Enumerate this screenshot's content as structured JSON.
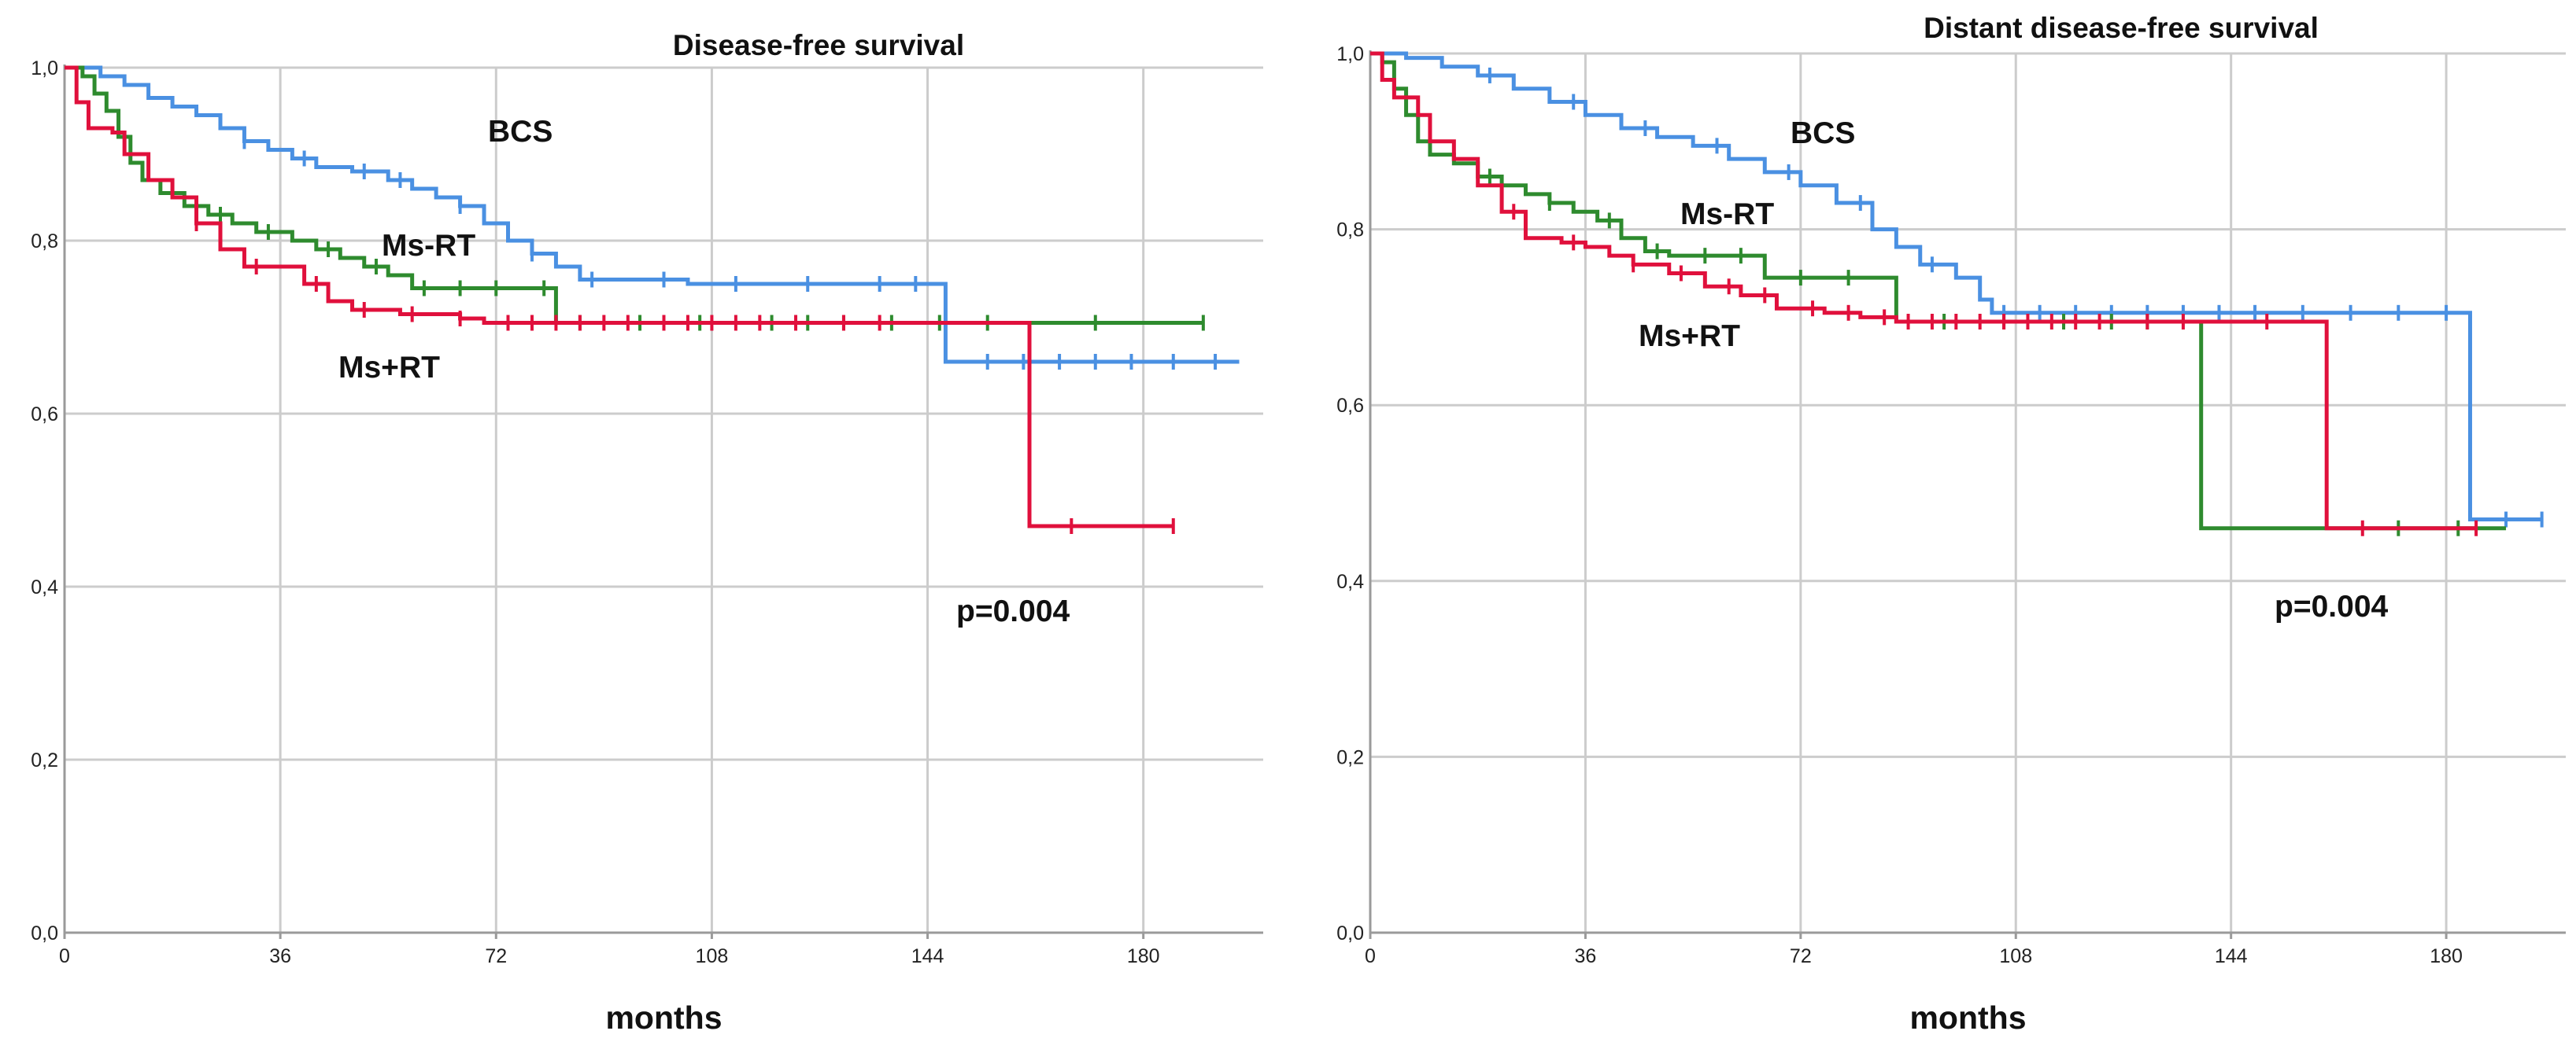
{
  "colors": {
    "BCS": "#4a90e2",
    "Ms-RT": "#2e8b2e",
    "Ms+RT": "#e0103c",
    "grid": "#cccccc",
    "axis": "#9a9a9a"
  },
  "chart_data": [
    {
      "type": "line",
      "title": "Disease-free survival",
      "xlabel": "months",
      "ylabel": "",
      "xlim": [
        0,
        200
      ],
      "ylim": [
        0,
        1.0
      ],
      "xticks": [
        "0",
        "36",
        "72",
        "108",
        "144",
        "180"
      ],
      "yticks": [
        "0,0",
        "0,2",
        "0,4",
        "0,6",
        "0,8",
        "1,0"
      ],
      "grid": true,
      "annotations": [
        "p=0.004"
      ],
      "series": [
        {
          "name": "BCS",
          "points": [
            [
              0,
              1.0
            ],
            [
              6,
              0.99
            ],
            [
              10,
              0.98
            ],
            [
              14,
              0.965
            ],
            [
              18,
              0.955
            ],
            [
              22,
              0.945
            ],
            [
              26,
              0.93
            ],
            [
              30,
              0.915
            ],
            [
              34,
              0.905
            ],
            [
              38,
              0.895
            ],
            [
              42,
              0.885
            ],
            [
              48,
              0.88
            ],
            [
              54,
              0.87
            ],
            [
              58,
              0.86
            ],
            [
              62,
              0.85
            ],
            [
              66,
              0.84
            ],
            [
              70,
              0.82
            ],
            [
              74,
              0.8
            ],
            [
              78,
              0.785
            ],
            [
              82,
              0.77
            ],
            [
              86,
              0.755
            ],
            [
              90,
              0.755
            ],
            [
              100,
              0.755
            ],
            [
              104,
              0.75
            ],
            [
              110,
              0.75
            ],
            [
              120,
              0.75
            ],
            [
              130,
              0.75
            ],
            [
              140,
              0.75
            ],
            [
              147,
              0.75
            ],
            [
              147,
              0.66
            ],
            [
              160,
              0.66
            ],
            [
              180,
              0.66
            ],
            [
              196,
              0.66
            ]
          ],
          "censor_x": [
            30,
            40,
            50,
            56,
            66,
            78,
            88,
            100,
            112,
            124,
            136,
            142,
            154,
            160,
            166,
            172,
            178,
            185,
            192
          ]
        },
        {
          "name": "Ms-RT",
          "points": [
            [
              0,
              1.0
            ],
            [
              3,
              0.99
            ],
            [
              5,
              0.97
            ],
            [
              7,
              0.95
            ],
            [
              9,
              0.92
            ],
            [
              11,
              0.89
            ],
            [
              13,
              0.87
            ],
            [
              16,
              0.855
            ],
            [
              20,
              0.84
            ],
            [
              24,
              0.83
            ],
            [
              28,
              0.82
            ],
            [
              32,
              0.81
            ],
            [
              38,
              0.8
            ],
            [
              42,
              0.79
            ],
            [
              46,
              0.78
            ],
            [
              50,
              0.77
            ],
            [
              54,
              0.76
            ],
            [
              58,
              0.745
            ],
            [
              78,
              0.745
            ],
            [
              82,
              0.705
            ],
            [
              190,
              0.705
            ]
          ],
          "censor_x": [
            26,
            34,
            44,
            52,
            60,
            66,
            72,
            80,
            86,
            96,
            106,
            118,
            124,
            130,
            138,
            146,
            154,
            172,
            190
          ]
        },
        {
          "name": "Ms+RT",
          "points": [
            [
              0,
              1.0
            ],
            [
              2,
              0.96
            ],
            [
              4,
              0.93
            ],
            [
              8,
              0.925
            ],
            [
              10,
              0.9
            ],
            [
              14,
              0.87
            ],
            [
              18,
              0.85
            ],
            [
              22,
              0.82
            ],
            [
              26,
              0.79
            ],
            [
              30,
              0.77
            ],
            [
              36,
              0.77
            ],
            [
              40,
              0.75
            ],
            [
              44,
              0.73
            ],
            [
              48,
              0.72
            ],
            [
              56,
              0.715
            ],
            [
              66,
              0.71
            ],
            [
              70,
              0.705
            ],
            [
              161,
              0.705
            ],
            [
              161,
              0.47
            ],
            [
              185,
              0.47
            ]
          ],
          "censor_x": [
            22,
            32,
            42,
            50,
            58,
            66,
            74,
            78,
            82,
            86,
            90,
            94,
            100,
            104,
            108,
            112,
            116,
            122,
            130,
            136,
            168,
            185
          ]
        }
      ],
      "labels": [
        "BCS",
        "Ms-RT",
        "Ms+RT"
      ]
    },
    {
      "type": "line",
      "title": "Distant disease-free survival",
      "xlabel": "months",
      "ylabel": "",
      "xlim": [
        0,
        200
      ],
      "ylim": [
        0,
        1.0
      ],
      "xticks": [
        "0",
        "36",
        "72",
        "108",
        "144",
        "180"
      ],
      "yticks": [
        "0,0",
        "0,2",
        "0,4",
        "0,6",
        "0,8",
        "1,0"
      ],
      "grid": true,
      "annotations": [
        "p=0.004"
      ],
      "series": [
        {
          "name": "BCS",
          "points": [
            [
              0,
              1.0
            ],
            [
              6,
              0.995
            ],
            [
              12,
              0.985
            ],
            [
              18,
              0.975
            ],
            [
              24,
              0.96
            ],
            [
              30,
              0.945
            ],
            [
              36,
              0.93
            ],
            [
              42,
              0.915
            ],
            [
              48,
              0.905
            ],
            [
              54,
              0.895
            ],
            [
              60,
              0.88
            ],
            [
              66,
              0.865
            ],
            [
              72,
              0.85
            ],
            [
              78,
              0.83
            ],
            [
              84,
              0.8
            ],
            [
              88,
              0.78
            ],
            [
              92,
              0.76
            ],
            [
              98,
              0.745
            ],
            [
              102,
              0.72
            ],
            [
              104,
              0.705
            ],
            [
              110,
              0.705
            ],
            [
              120,
              0.705
            ],
            [
              140,
              0.705
            ],
            [
              160,
              0.705
            ],
            [
              175,
              0.705
            ],
            [
              184,
              0.705
            ],
            [
              184,
              0.47
            ],
            [
              196,
              0.47
            ]
          ],
          "censor_x": [
            20,
            34,
            46,
            58,
            70,
            82,
            94,
            106,
            112,
            118,
            124,
            130,
            136,
            142,
            148,
            156,
            164,
            172,
            180,
            190,
            196
          ]
        },
        {
          "name": "Ms-RT",
          "points": [
            [
              0,
              1.0
            ],
            [
              2,
              0.99
            ],
            [
              4,
              0.96
            ],
            [
              6,
              0.93
            ],
            [
              8,
              0.9
            ],
            [
              10,
              0.885
            ],
            [
              14,
              0.875
            ],
            [
              18,
              0.86
            ],
            [
              22,
              0.85
            ],
            [
              26,
              0.84
            ],
            [
              30,
              0.83
            ],
            [
              34,
              0.82
            ],
            [
              38,
              0.81
            ],
            [
              42,
              0.79
            ],
            [
              46,
              0.775
            ],
            [
              50,
              0.77
            ],
            [
              66,
              0.77
            ],
            [
              66,
              0.745
            ],
            [
              88,
              0.745
            ],
            [
              88,
              0.695
            ],
            [
              139,
              0.695
            ],
            [
              139,
              0.46
            ],
            [
              190,
              0.46
            ]
          ],
          "censor_x": [
            20,
            30,
            40,
            48,
            56,
            62,
            72,
            80,
            96,
            106,
            116,
            124,
            130,
            172,
            182
          ]
        },
        {
          "name": "Ms+RT",
          "points": [
            [
              0,
              1.0
            ],
            [
              2,
              0.97
            ],
            [
              4,
              0.95
            ],
            [
              8,
              0.93
            ],
            [
              10,
              0.9
            ],
            [
              14,
              0.88
            ],
            [
              18,
              0.85
            ],
            [
              22,
              0.82
            ],
            [
              26,
              0.79
            ],
            [
              32,
              0.785
            ],
            [
              36,
              0.78
            ],
            [
              40,
              0.77
            ],
            [
              44,
              0.76
            ],
            [
              50,
              0.75
            ],
            [
              56,
              0.735
            ],
            [
              62,
              0.725
            ],
            [
              68,
              0.71
            ],
            [
              76,
              0.705
            ],
            [
              82,
              0.7
            ],
            [
              88,
              0.695
            ],
            [
              160,
              0.695
            ],
            [
              160,
              0.46
            ],
            [
              185,
              0.46
            ]
          ],
          "censor_x": [
            24,
            34,
            44,
            52,
            60,
            66,
            74,
            80,
            86,
            90,
            94,
            98,
            102,
            106,
            110,
            114,
            118,
            122,
            130,
            136,
            150,
            166,
            185
          ]
        }
      ],
      "labels": [
        "BCS",
        "Ms-RT",
        "Ms+RT"
      ]
    }
  ]
}
